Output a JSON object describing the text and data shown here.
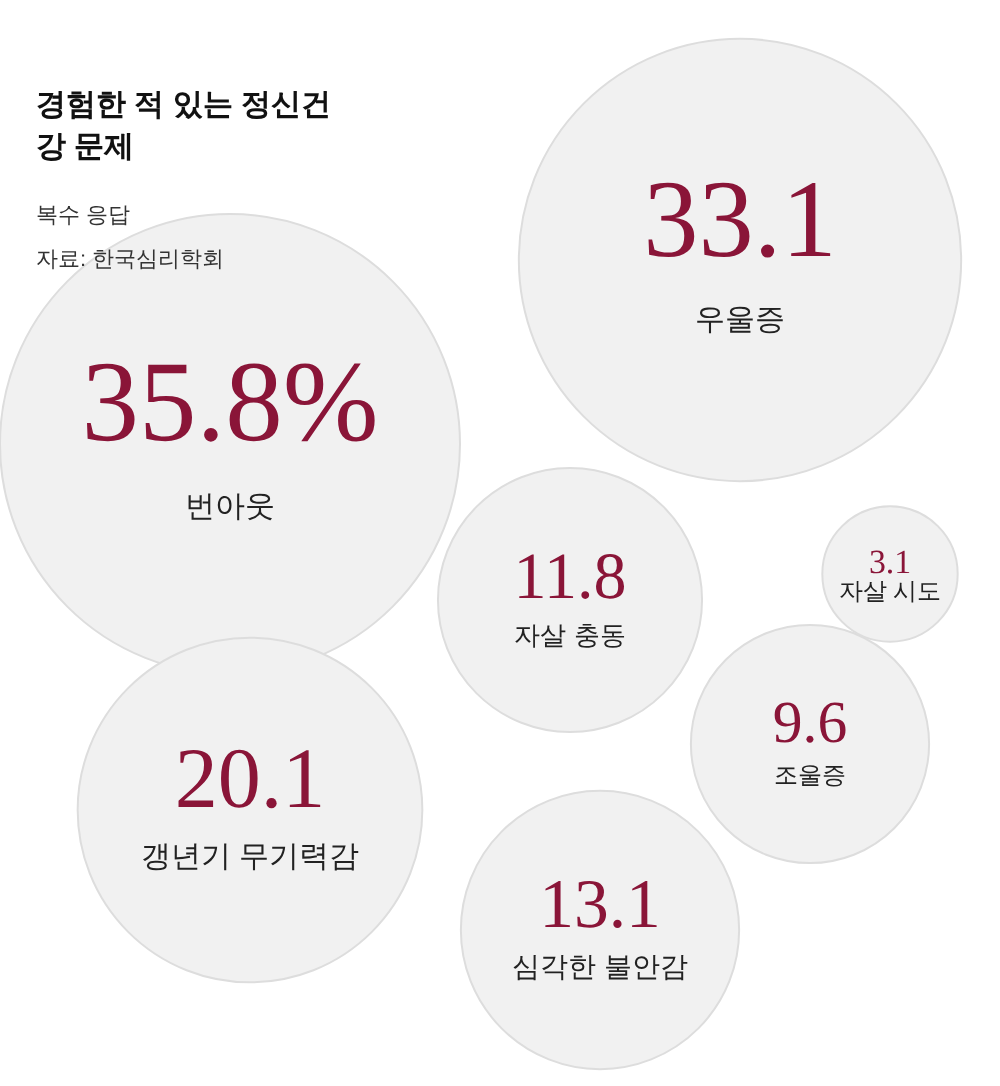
{
  "chart_data": {
    "type": "other",
    "title": "경험한 적 있는 정신건강 문제",
    "subtitle": "복수 응답",
    "annotations": [
      "자료: 한국심리학회"
    ],
    "categories": [
      "번아웃",
      "우울증",
      "갱년기 무기력감",
      "심각한 불안감",
      "자살 충동",
      "조울증",
      "자살 시도"
    ],
    "values": [
      35.8,
      33.1,
      20.1,
      13.1,
      11.8,
      9.6,
      3.1
    ],
    "value_labels": [
      "35.8%",
      "33.1",
      "20.1",
      "13.1",
      "11.8",
      "9.6",
      "3.1"
    ],
    "color": "#f1f1f1"
  }
}
